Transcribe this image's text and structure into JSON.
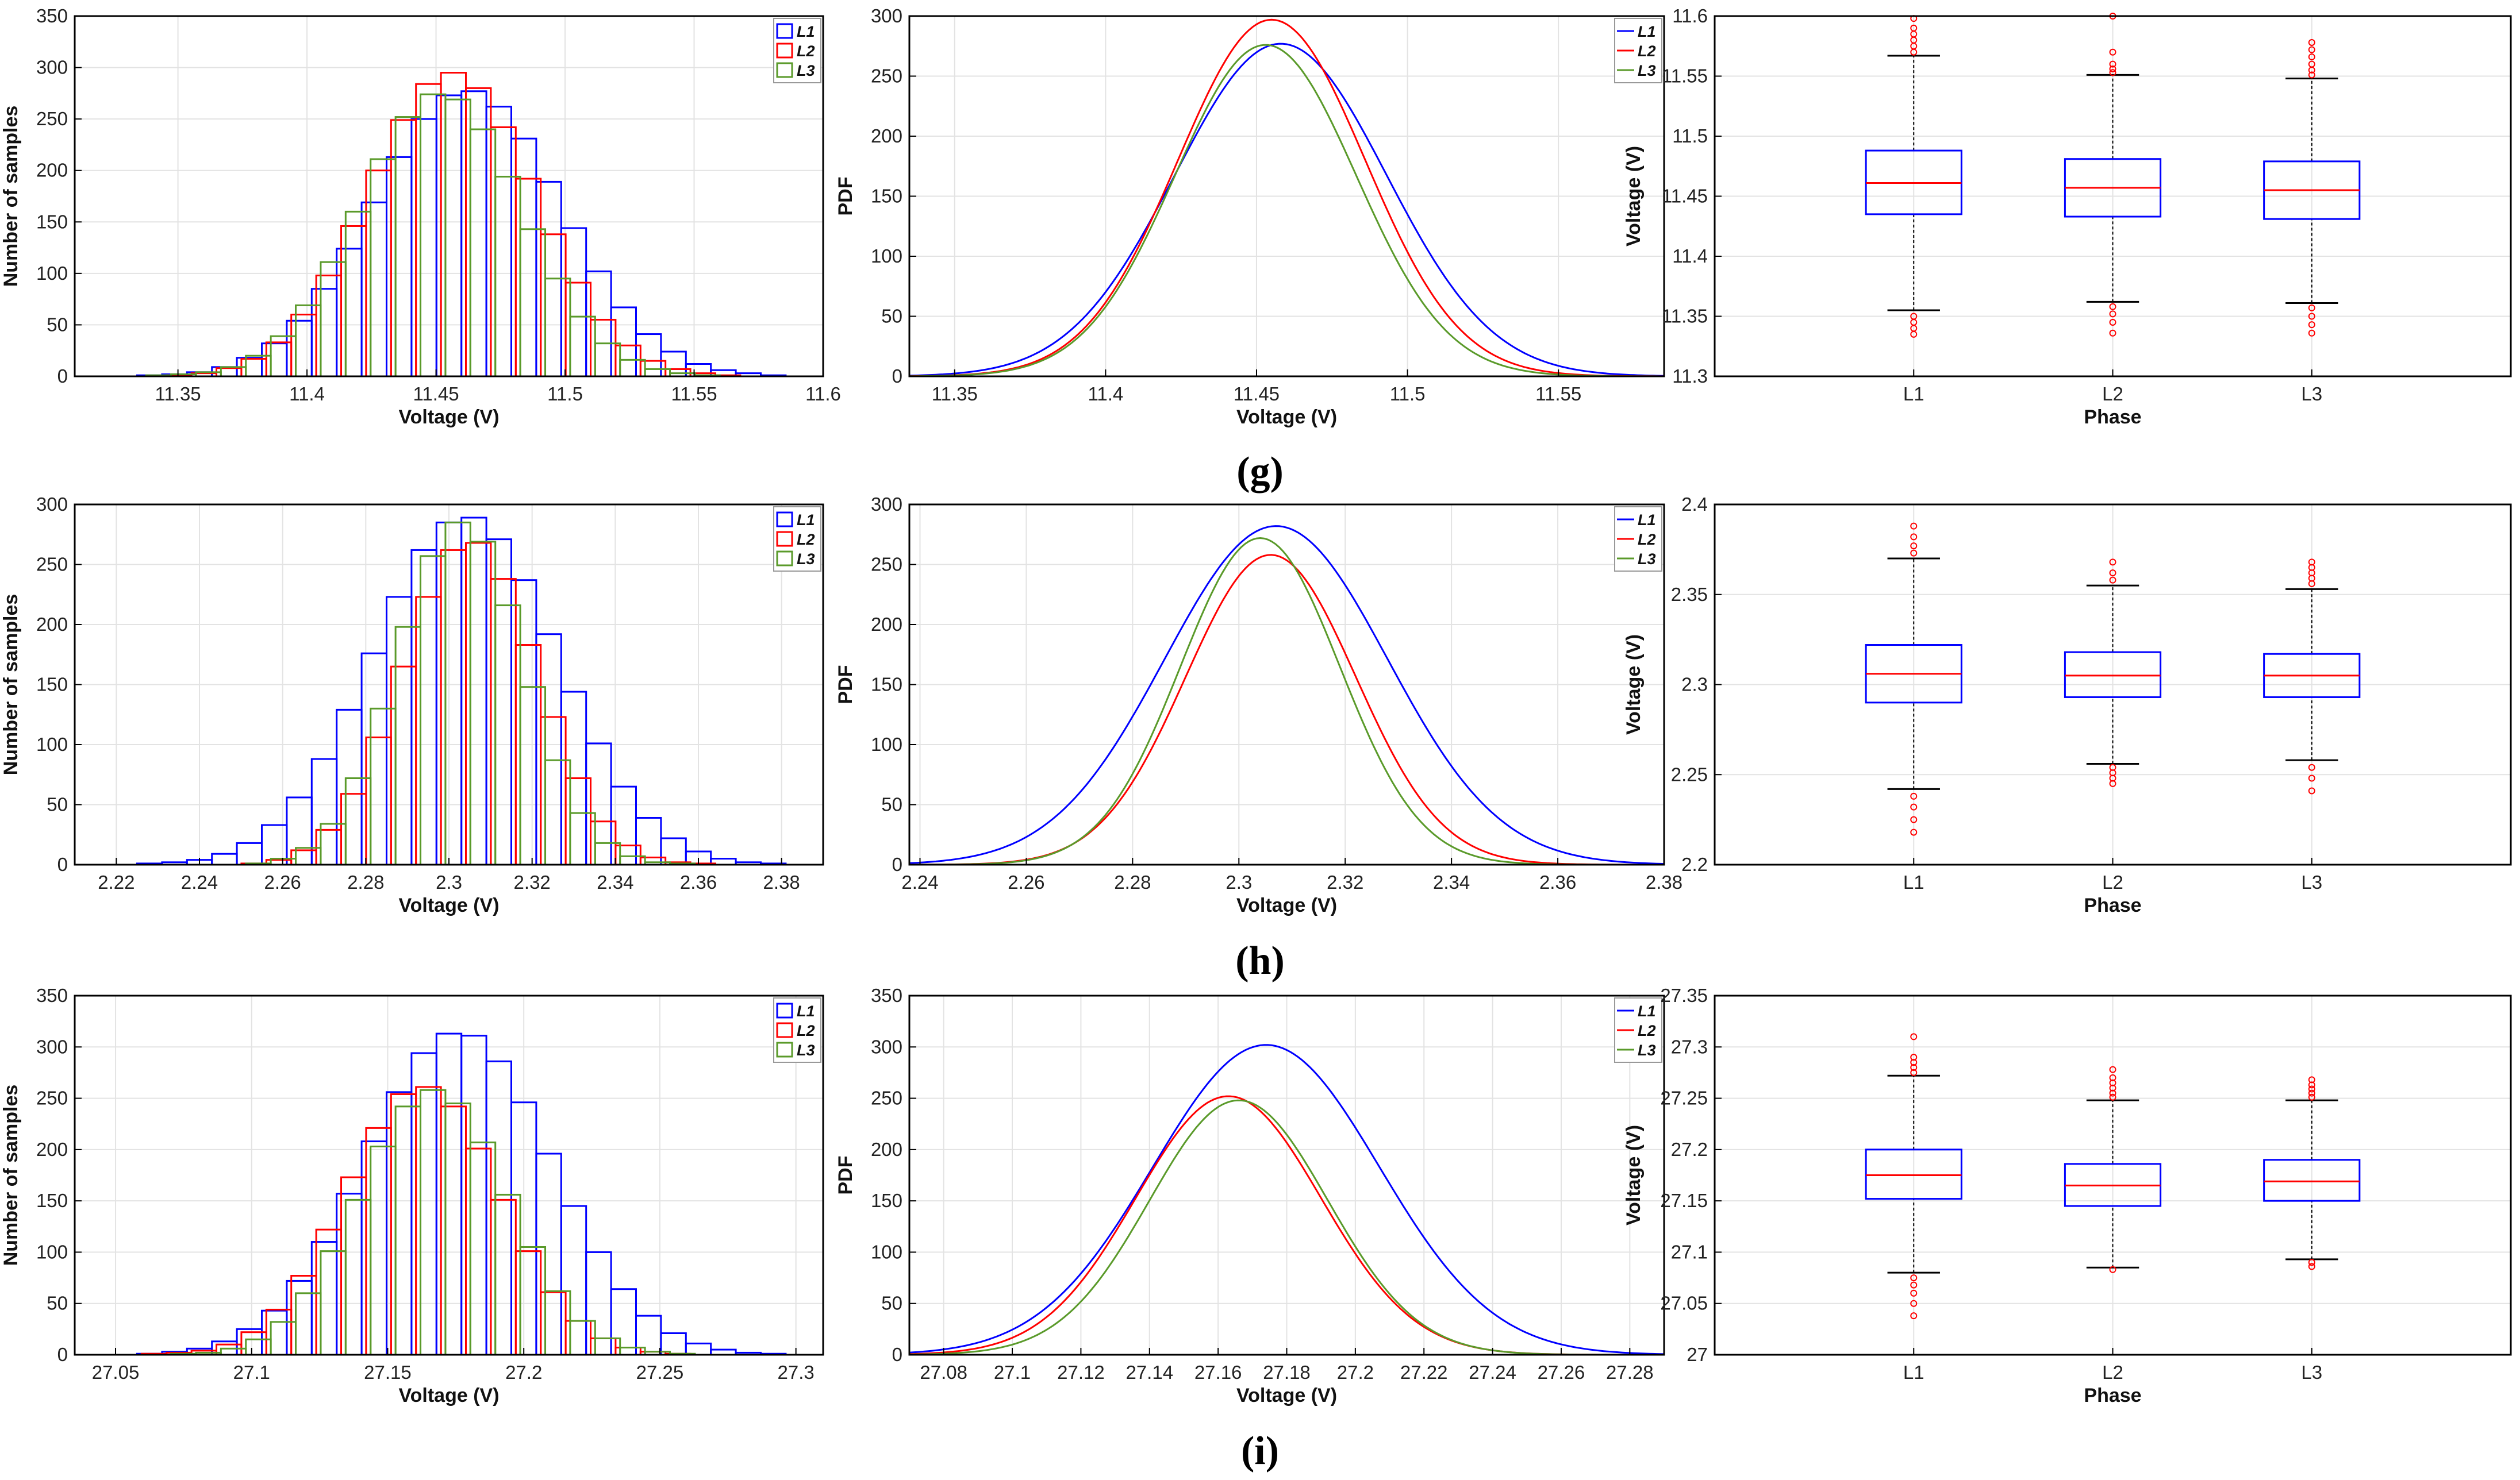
{
  "panel_labels": [
    "(g)",
    "(h)",
    "(i)"
  ],
  "colors": {
    "L1": "#0000ff",
    "L2": "#ff0000",
    "L3": "#5a9a2a",
    "outlier": "#ff0000",
    "median": "#ff0000"
  },
  "chart_data": [
    {
      "id": "g-hist",
      "type": "bar",
      "xlabel": "Voltage (V)",
      "ylabel": "Number of samples",
      "xlim": [
        11.31,
        11.6
      ],
      "ylim": [
        0,
        350
      ],
      "xticks": [
        "11.35",
        "11.4",
        "11.45",
        "11.5",
        "11.55",
        "11.6"
      ],
      "yticks": [
        "0",
        "50",
        "100",
        "150",
        "200",
        "250",
        "300",
        "350"
      ],
      "legend": [
        "L1",
        "L2",
        "L3"
      ],
      "legend_position": "top-right",
      "series": [
        {
          "name": "L1",
          "mu": 11.462,
          "sigma": 0.036,
          "peak": 278
        },
        {
          "name": "L2",
          "mu": 11.456,
          "sigma": 0.032,
          "peak": 295
        },
        {
          "name": "L3",
          "mu": 11.452,
          "sigma": 0.031,
          "peak": 275
        }
      ]
    },
    {
      "id": "g-pdf",
      "type": "line",
      "xlabel": "Voltage (V)",
      "ylabel": "PDF",
      "xlim": [
        11.335,
        11.585
      ],
      "ylim": [
        0,
        300
      ],
      "xticks": [
        "11.35",
        "11.4",
        "11.45",
        "11.5",
        "11.55"
      ],
      "yticks": [
        "0",
        "50",
        "100",
        "150",
        "200",
        "250",
        "300"
      ],
      "legend": [
        "L1",
        "L2",
        "L3"
      ],
      "legend_position": "top-right",
      "series": [
        {
          "name": "L1",
          "mu": 11.458,
          "sigma": 0.035,
          "peak": 277
        },
        {
          "name": "L2",
          "mu": 11.455,
          "sigma": 0.031,
          "peak": 297
        },
        {
          "name": "L3",
          "mu": 11.453,
          "sigma": 0.03,
          "peak": 276
        }
      ]
    },
    {
      "id": "g-box",
      "type": "box",
      "xlabel": "Phase",
      "ylabel": "Voltage (V)",
      "ylim": [
        11.3,
        11.6
      ],
      "categories": [
        "L1",
        "L2",
        "L3"
      ],
      "yticks": [
        "11.3",
        "11.35",
        "11.4",
        "11.45",
        "11.5",
        "11.55",
        "11.6"
      ],
      "boxes": [
        {
          "name": "L1",
          "q1": 11.435,
          "median": 11.461,
          "q3": 11.488,
          "whisker_low": 11.355,
          "whisker_high": 11.567,
          "outliers": [
            11.35,
            11.345,
            11.34,
            11.335,
            11.57,
            11.575,
            11.58,
            11.585,
            11.59,
            11.598
          ]
        },
        {
          "name": "L2",
          "q1": 11.433,
          "median": 11.457,
          "q3": 11.481,
          "whisker_low": 11.362,
          "whisker_high": 11.551,
          "outliers": [
            11.358,
            11.352,
            11.345,
            11.336,
            11.553,
            11.556,
            11.56,
            11.57,
            11.6
          ]
        },
        {
          "name": "L3",
          "q1": 11.431,
          "median": 11.455,
          "q3": 11.479,
          "whisker_low": 11.361,
          "whisker_high": 11.548,
          "outliers": [
            11.357,
            11.35,
            11.343,
            11.336,
            11.551,
            11.555,
            11.56,
            11.566,
            11.572,
            11.578
          ]
        }
      ]
    },
    {
      "id": "h-hist",
      "type": "bar",
      "xlabel": "Voltage (V)",
      "ylabel": "Number of samples",
      "xlim": [
        2.21,
        2.39
      ],
      "ylim": [
        0,
        300
      ],
      "xticks": [
        "2.22",
        "2.24",
        "2.26",
        "2.28",
        "2.3",
        "2.32",
        "2.34",
        "2.36",
        "2.38"
      ],
      "yticks": [
        "0",
        "50",
        "100",
        "150",
        "200",
        "250",
        "300"
      ],
      "legend": [
        "L1",
        "L2",
        "L3"
      ],
      "legend_position": "top-right",
      "series": [
        {
          "name": "L1",
          "mu": 2.304,
          "sigma": 0.022,
          "peak": 290
        },
        {
          "name": "L2",
          "mu": 2.305,
          "sigma": 0.016,
          "peak": 270
        },
        {
          "name": "L3",
          "mu": 2.303,
          "sigma": 0.015,
          "peak": 285
        }
      ]
    },
    {
      "id": "h-pdf",
      "type": "line",
      "xlabel": "Voltage (V)",
      "ylabel": "PDF",
      "xlim": [
        2.238,
        2.38
      ],
      "ylim": [
        0,
        300
      ],
      "xticks": [
        "2.24",
        "2.26",
        "2.28",
        "2.3",
        "2.32",
        "2.34",
        "2.36",
        "2.38"
      ],
      "yticks": [
        "0",
        "50",
        "100",
        "150",
        "200",
        "250",
        "300"
      ],
      "legend": [
        "L1",
        "L2",
        "L3"
      ],
      "legend_position": "top-right",
      "series": [
        {
          "name": "L1",
          "mu": 2.307,
          "sigma": 0.021,
          "peak": 282
        },
        {
          "name": "L2",
          "mu": 2.306,
          "sigma": 0.016,
          "peak": 258
        },
        {
          "name": "L3",
          "mu": 2.304,
          "sigma": 0.015,
          "peak": 272
        }
      ]
    },
    {
      "id": "h-box",
      "type": "box",
      "xlabel": "Phase",
      "ylabel": "Voltage (V)",
      "ylim": [
        2.2,
        2.4
      ],
      "categories": [
        "L1",
        "L2",
        "L3"
      ],
      "yticks": [
        "2.2",
        "2.25",
        "2.3",
        "2.35",
        "2.4"
      ],
      "boxes": [
        {
          "name": "L1",
          "q1": 2.29,
          "median": 2.306,
          "q3": 2.322,
          "whisker_low": 2.242,
          "whisker_high": 2.37,
          "outliers": [
            2.238,
            2.232,
            2.225,
            2.218,
            2.373,
            2.377,
            2.382,
            2.388
          ]
        },
        {
          "name": "L2",
          "q1": 2.293,
          "median": 2.305,
          "q3": 2.318,
          "whisker_low": 2.256,
          "whisker_high": 2.355,
          "outliers": [
            2.254,
            2.251,
            2.248,
            2.245,
            2.358,
            2.362,
            2.368
          ]
        },
        {
          "name": "L3",
          "q1": 2.293,
          "median": 2.305,
          "q3": 2.317,
          "whisker_low": 2.258,
          "whisker_high": 2.353,
          "outliers": [
            2.254,
            2.248,
            2.241,
            2.356,
            2.359,
            2.362,
            2.365,
            2.368
          ]
        }
      ]
    },
    {
      "id": "i-hist",
      "type": "bar",
      "xlabel": "Voltage (V)",
      "ylabel": "Number of samples",
      "xlim": [
        27.035,
        27.31
      ],
      "ylim": [
        0,
        350
      ],
      "xticks": [
        "27.05",
        "27.1",
        "27.15",
        "27.2",
        "27.25",
        "27.3"
      ],
      "yticks": [
        "0",
        "50",
        "100",
        "150",
        "200",
        "250",
        "300",
        "350"
      ],
      "legend": [
        "L1",
        "L2",
        "L3"
      ],
      "legend_position": "top-right",
      "series": [
        {
          "name": "L1",
          "mu": 27.176,
          "sigma": 0.034,
          "peak": 315
        },
        {
          "name": "L2",
          "mu": 27.163,
          "sigma": 0.028,
          "peak": 262
        },
        {
          "name": "L3",
          "mu": 27.167,
          "sigma": 0.027,
          "peak": 258
        }
      ]
    },
    {
      "id": "i-pdf",
      "type": "line",
      "xlabel": "Voltage (V)",
      "ylabel": "PDF",
      "xlim": [
        27.07,
        27.29
      ],
      "ylim": [
        0,
        350
      ],
      "xticks": [
        "27.08",
        "27.1",
        "27.12",
        "27.14",
        "27.16",
        "27.18",
        "27.2",
        "27.22",
        "27.24",
        "27.26",
        "27.28"
      ],
      "yticks": [
        "0",
        "50",
        "100",
        "150",
        "200",
        "250",
        "300",
        "350"
      ],
      "legend": [
        "L1",
        "L2",
        "L3"
      ],
      "legend_position": "top-right",
      "series": [
        {
          "name": "L1",
          "mu": 27.174,
          "sigma": 0.033,
          "peak": 302
        },
        {
          "name": "L2",
          "mu": 27.163,
          "sigma": 0.027,
          "peak": 252
        },
        {
          "name": "L3",
          "mu": 27.166,
          "sigma": 0.026,
          "peak": 248
        }
      ]
    },
    {
      "id": "i-box",
      "type": "box",
      "xlabel": "Phase",
      "ylabel": "Voltage (V)",
      "ylim": [
        27.0,
        27.35
      ],
      "categories": [
        "L1",
        "L2",
        "L3"
      ],
      "yticks": [
        "27",
        "27.05",
        "27.1",
        "27.15",
        "27.2",
        "27.25",
        "27.3",
        "27.35"
      ],
      "boxes": [
        {
          "name": "L1",
          "q1": 27.152,
          "median": 27.175,
          "q3": 27.2,
          "whisker_low": 27.08,
          "whisker_high": 27.272,
          "outliers": [
            27.075,
            27.068,
            27.06,
            27.05,
            27.038,
            27.275,
            27.28,
            27.285,
            27.29,
            27.31
          ]
        },
        {
          "name": "L2",
          "q1": 27.145,
          "median": 27.165,
          "q3": 27.186,
          "whisker_low": 27.085,
          "whisker_high": 27.248,
          "outliers": [
            27.083,
            27.251,
            27.255,
            27.26,
            27.265,
            27.27,
            27.278
          ]
        },
        {
          "name": "L3",
          "q1": 27.15,
          "median": 27.169,
          "q3": 27.19,
          "whisker_low": 27.093,
          "whisker_high": 27.248,
          "outliers": [
            27.09,
            27.086,
            27.251,
            27.255,
            27.259,
            27.263,
            27.268
          ]
        }
      ]
    }
  ]
}
